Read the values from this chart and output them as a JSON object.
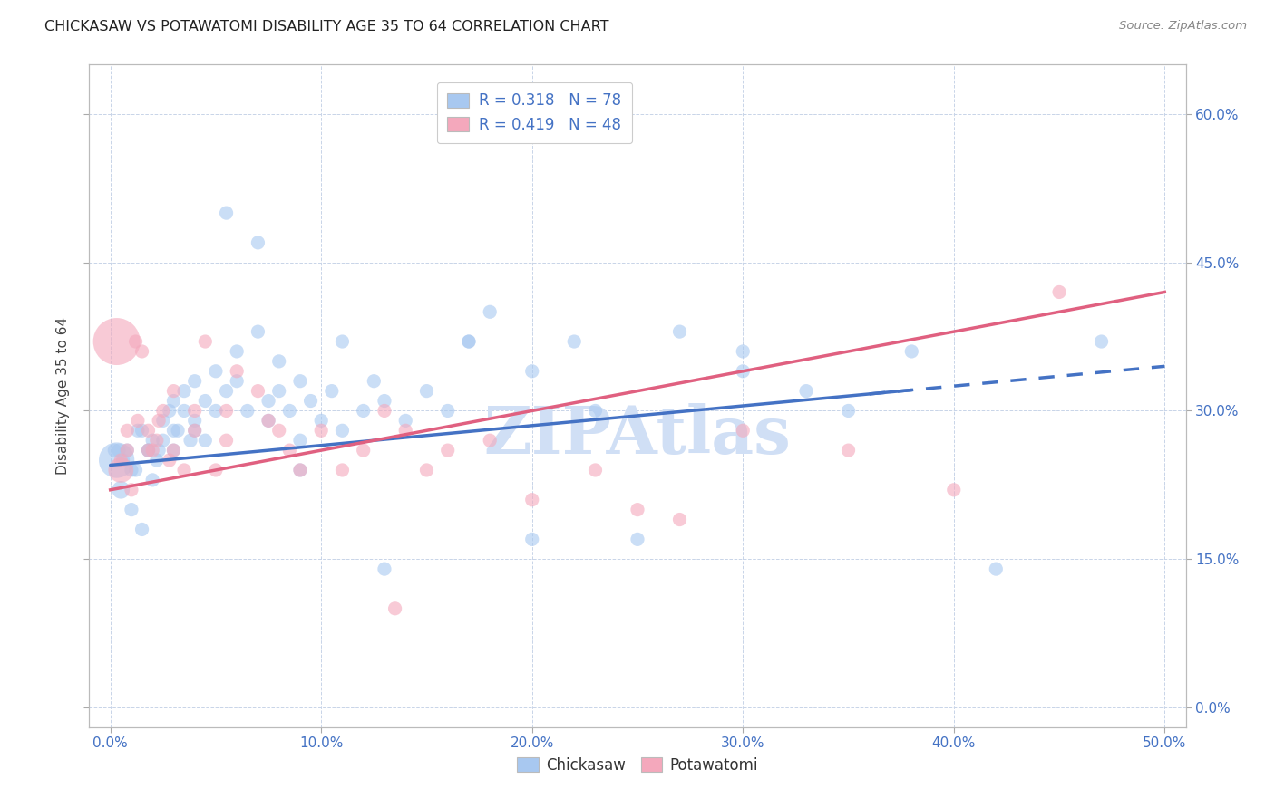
{
  "title": "CHICKASAW VS POTAWATOMI DISABILITY AGE 35 TO 64 CORRELATION CHART",
  "source": "Source: ZipAtlas.com",
  "xlabel_ticks": [
    "0.0%",
    "10.0%",
    "20.0%",
    "30.0%",
    "40.0%",
    "50.0%"
  ],
  "xlabel_vals": [
    0,
    10,
    20,
    30,
    40,
    50
  ],
  "ylabel_ticks": [
    "0.0%",
    "15.0%",
    "30.0%",
    "45.0%",
    "60.0%"
  ],
  "ylabel_vals": [
    0,
    15,
    30,
    45,
    60
  ],
  "ylabel_label": "Disability Age 35 to 64",
  "xlim": [
    -1,
    51
  ],
  "ylim": [
    -2,
    65
  ],
  "legend_label1": "R = 0.318   N = 78",
  "legend_label2": "R = 0.419   N = 48",
  "color_chickasaw": "#A8C8F0",
  "color_potawatomi": "#F4A8BC",
  "color_line1": "#4472C4",
  "color_line2": "#E06080",
  "watermark": "ZIPAtlas",
  "watermark_color": "#D0DFF5",
  "line1_x0": 0,
  "line1_y0": 24.5,
  "line1_x1": 50,
  "line1_y1": 34.5,
  "line2_x0": 0,
  "line2_y0": 22.0,
  "line2_x1": 50,
  "line2_y1": 42.0,
  "line1_solid_end": 38,
  "line1_dash_start": 36,
  "line1_dash_end": 50,
  "chickasaw_x": [
    0.3,
    0.5,
    0.8,
    1.0,
    1.2,
    1.5,
    1.5,
    1.8,
    2.0,
    2.0,
    2.2,
    2.5,
    2.5,
    2.8,
    3.0,
    3.0,
    3.2,
    3.5,
    3.5,
    3.8,
    4.0,
    4.0,
    4.5,
    4.5,
    5.0,
    5.0,
    5.5,
    6.0,
    6.0,
    6.5,
    7.0,
    7.5,
    7.5,
    8.0,
    8.0,
    8.5,
    9.0,
    9.0,
    9.5,
    10.0,
    10.5,
    11.0,
    11.0,
    12.0,
    12.5,
    13.0,
    14.0,
    15.0,
    16.0,
    17.0,
    18.0,
    20.0,
    22.0,
    23.0,
    25.0,
    27.0,
    30.0,
    33.0,
    35.0,
    38.0,
    0.2,
    0.4,
    0.6,
    1.0,
    1.3,
    1.8,
    2.3,
    3.0,
    4.0,
    5.5,
    7.0,
    9.0,
    13.0,
    17.0,
    20.0,
    30.0,
    42.0,
    47.0
  ],
  "chickasaw_y": [
    25,
    22,
    26,
    20,
    24,
    18,
    28,
    26,
    27,
    23,
    25,
    29,
    27,
    30,
    31,
    26,
    28,
    32,
    30,
    27,
    29,
    33,
    31,
    27,
    30,
    34,
    32,
    33,
    36,
    30,
    38,
    31,
    29,
    32,
    35,
    30,
    33,
    27,
    31,
    29,
    32,
    28,
    37,
    30,
    33,
    31,
    29,
    32,
    30,
    37,
    40,
    34,
    37,
    30,
    17,
    38,
    36,
    32,
    30,
    36,
    26,
    26,
    25,
    24,
    28,
    26,
    26,
    28,
    28,
    50,
    47,
    24,
    14,
    37,
    17,
    34,
    14,
    37
  ],
  "potawatomi_x": [
    0.3,
    0.5,
    0.8,
    1.0,
    1.2,
    1.5,
    1.8,
    2.0,
    2.2,
    2.5,
    2.8,
    3.0,
    3.5,
    4.0,
    4.5,
    5.0,
    5.5,
    6.0,
    7.0,
    7.5,
    8.0,
    9.0,
    10.0,
    11.0,
    12.0,
    13.0,
    14.0,
    15.0,
    16.0,
    18.0,
    20.0,
    23.0,
    25.0,
    27.0,
    30.0,
    35.0,
    40.0,
    45.0,
    0.5,
    0.8,
    1.3,
    1.8,
    2.3,
    3.0,
    4.0,
    5.5,
    8.5,
    13.5
  ],
  "potawatomi_y": [
    37,
    24,
    28,
    22,
    37,
    36,
    28,
    26,
    27,
    30,
    25,
    32,
    24,
    28,
    37,
    24,
    30,
    34,
    32,
    29,
    28,
    24,
    28,
    24,
    26,
    30,
    28,
    24,
    26,
    27,
    21,
    24,
    20,
    19,
    28,
    26,
    22,
    42,
    25,
    26,
    29,
    26,
    29,
    26,
    30,
    27,
    26,
    10
  ],
  "chickasaw_sizes_large": [
    800,
    200
  ],
  "chickasaw_large_idx": [
    0,
    1
  ],
  "default_size": 120
}
